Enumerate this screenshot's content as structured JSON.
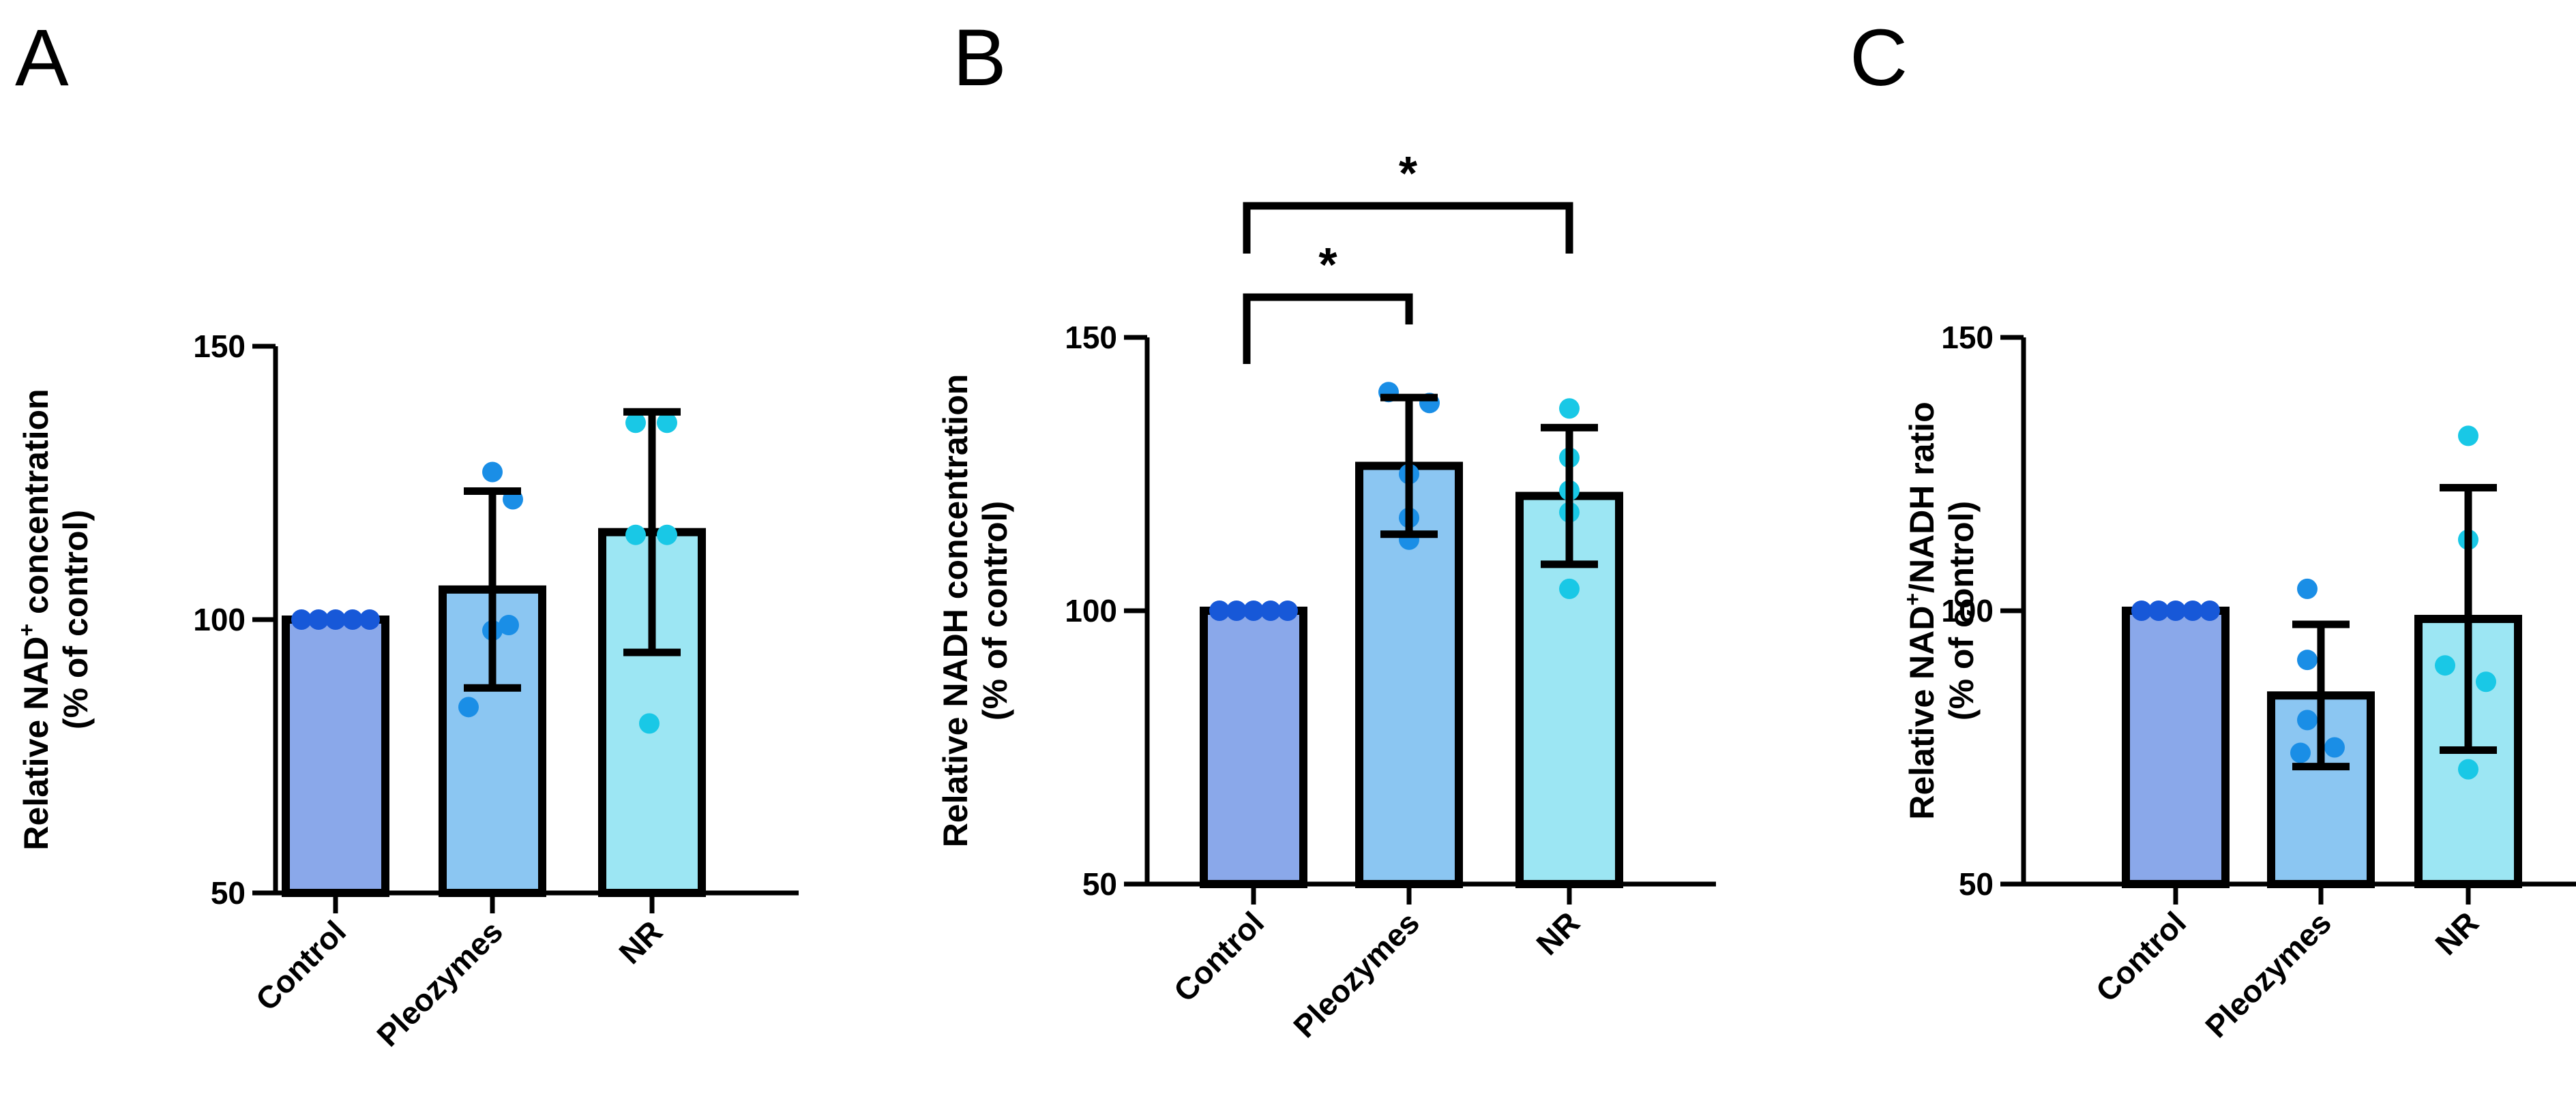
{
  "chart_data": [
    {
      "type": "bar",
      "panel": "A",
      "categories": [
        "Control",
        "Pleozymes",
        "NR"
      ],
      "ylabel_line1_pre": "Relative NAD",
      "ylabel_line1_sup": "+",
      "ylabel_line1_post": " concentration",
      "ylabel_line2": "(% of control)",
      "ylim": [
        50,
        150
      ],
      "yticks": [
        50,
        100,
        150
      ],
      "means": [
        100,
        105.5,
        116
      ],
      "sd": [
        0,
        18,
        22
      ],
      "points": [
        [
          100,
          100,
          100,
          100,
          100
        ],
        [
          127,
          99,
          98,
          84,
          122
        ],
        [
          136,
          136,
          115.5,
          115.5,
          81
        ]
      ],
      "significance": []
    },
    {
      "type": "bar",
      "panel": "B",
      "categories": [
        "Control",
        "Pleozymes",
        "NR"
      ],
      "ylabel_line1_pre": "Relative NADH concentration",
      "ylabel_line1_sup": "",
      "ylabel_line1_post": "",
      "ylabel_line2": "(% of control)",
      "ylim": [
        50,
        150
      ],
      "yticks": [
        50,
        100,
        150
      ],
      "means": [
        100,
        126.5,
        121
      ],
      "sd": [
        0,
        12.5,
        12.5
      ],
      "points": [
        [
          100,
          100,
          100,
          100,
          100
        ],
        [
          140,
          138,
          125,
          117,
          113
        ],
        [
          137,
          128,
          122,
          118,
          104
        ]
      ],
      "significance": [
        {
          "from": 0,
          "to": 1,
          "label": "*"
        },
        {
          "from": 0,
          "to": 2,
          "label": "*"
        }
      ]
    },
    {
      "type": "bar",
      "panel": "C",
      "categories": [
        "Control",
        "Pleozymes",
        "NR"
      ],
      "ylabel_line1_pre": "Relative NAD",
      "ylabel_line1_sup": "+",
      "ylabel_line1_post": "/NADH ratio",
      "ylabel_line2": "(% of control)",
      "ylim": [
        50,
        150
      ],
      "yticks": [
        50,
        100,
        150
      ],
      "means": [
        100,
        84.5,
        98.5
      ],
      "sd": [
        0,
        13,
        24
      ],
      "points": [
        [
          100,
          100,
          100,
          100,
          100
        ],
        [
          104,
          91,
          80,
          75,
          74
        ],
        [
          132,
          113,
          90,
          87,
          71
        ]
      ],
      "significance": []
    }
  ],
  "colors": {
    "bars": [
      "#8aa8ea",
      "#8bc6f2",
      "#9ce6f3"
    ],
    "points": [
      "#1758d8",
      "#1a8ee6",
      "#19c8e6"
    ],
    "ink": "#000000"
  }
}
